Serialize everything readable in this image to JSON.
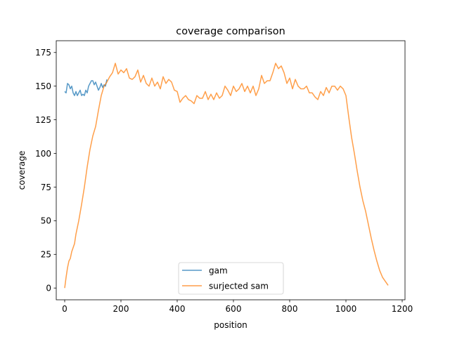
{
  "chart_data": {
    "type": "line",
    "title": "coverage comparison",
    "xlabel": "position",
    "ylabel": "coverage",
    "xlim": [
      -30,
      1210
    ],
    "ylim": [
      -8.75,
      183.75
    ],
    "xticks": [
      0,
      200,
      400,
      600,
      800,
      1000,
      1200
    ],
    "yticks": [
      0,
      25,
      50,
      75,
      100,
      125,
      150,
      175
    ],
    "grid": false,
    "legend_position": "lower-center",
    "series": [
      {
        "name": "gam",
        "color": "#1f77b4",
        "x": [
          0,
          5,
          10,
          15,
          20,
          25,
          30,
          35,
          40,
          45,
          50,
          55,
          60,
          65,
          70,
          75,
          80,
          85,
          90,
          95,
          100,
          105,
          110,
          115,
          120,
          125,
          130,
          135,
          140,
          145,
          150
        ],
        "y": [
          146,
          145,
          152,
          151,
          148,
          150,
          145,
          143,
          146,
          143,
          145,
          147,
          143,
          144,
          143,
          147,
          145,
          150,
          152,
          154,
          154,
          151,
          153,
          150,
          147,
          149,
          152,
          149,
          151,
          150,
          155
        ]
      },
      {
        "name": "surjected sam",
        "color": "#ff7f0e",
        "x": [
          0,
          5,
          10,
          15,
          20,
          25,
          30,
          35,
          40,
          50,
          60,
          70,
          80,
          90,
          100,
          110,
          120,
          130,
          140,
          150,
          160,
          170,
          180,
          185,
          190,
          200,
          210,
          220,
          230,
          240,
          250,
          260,
          270,
          280,
          290,
          300,
          310,
          320,
          330,
          340,
          350,
          360,
          370,
          380,
          390,
          400,
          410,
          420,
          430,
          440,
          450,
          460,
          470,
          480,
          490,
          500,
          510,
          520,
          530,
          540,
          550,
          560,
          570,
          580,
          590,
          600,
          610,
          620,
          630,
          640,
          650,
          660,
          670,
          680,
          690,
          700,
          710,
          720,
          730,
          740,
          750,
          760,
          770,
          780,
          790,
          800,
          810,
          820,
          830,
          840,
          850,
          860,
          870,
          880,
          890,
          900,
          910,
          920,
          930,
          940,
          950,
          960,
          970,
          980,
          990,
          1000,
          1010,
          1020,
          1030,
          1040,
          1050,
          1060,
          1070,
          1080,
          1090,
          1100,
          1110,
          1120,
          1130,
          1140,
          1150
        ],
        "y": [
          0,
          8,
          15,
          20,
          22,
          27,
          30,
          33,
          40,
          50,
          62,
          75,
          90,
          103,
          113,
          120,
          132,
          143,
          150,
          153,
          157,
          160,
          167,
          163,
          159,
          162,
          160,
          163,
          156,
          155,
          157,
          162,
          153,
          158,
          152,
          150,
          156,
          150,
          153,
          148,
          157,
          152,
          155,
          153,
          147,
          146,
          138,
          141,
          143,
          140,
          139,
          137,
          143,
          141,
          141,
          146,
          140,
          144,
          140,
          145,
          141,
          143,
          150,
          147,
          143,
          150,
          146,
          148,
          152,
          146,
          150,
          145,
          150,
          143,
          148,
          158,
          152,
          154,
          154,
          160,
          167,
          163,
          165,
          160,
          152,
          156,
          148,
          155,
          150,
          148,
          148,
          150,
          145,
          145,
          142,
          140,
          146,
          143,
          149,
          145,
          150,
          150,
          147,
          150,
          148,
          143,
          127,
          112,
          100,
          87,
          75,
          65,
          57,
          47,
          37,
          28,
          20,
          13,
          8,
          5,
          2
        ]
      }
    ]
  }
}
